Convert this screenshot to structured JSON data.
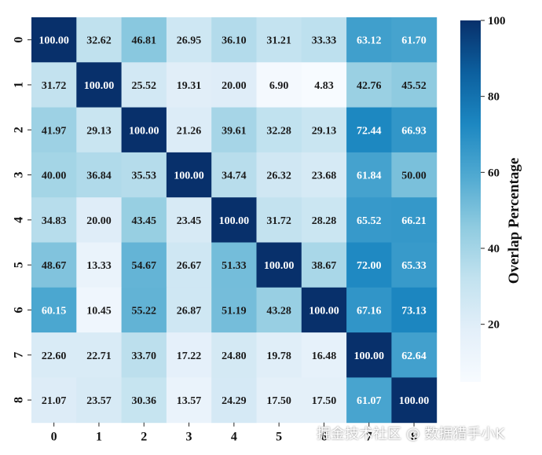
{
  "chart_data": {
    "type": "heatmap",
    "x_categories": [
      "0",
      "1",
      "2",
      "3",
      "4",
      "5",
      "6",
      "7",
      "8"
    ],
    "y_categories": [
      "0",
      "1",
      "2",
      "3",
      "4",
      "5",
      "6",
      "7",
      "8"
    ],
    "values": [
      [
        100.0,
        32.62,
        46.81,
        26.95,
        36.1,
        31.21,
        33.33,
        63.12,
        61.7
      ],
      [
        31.72,
        100.0,
        25.52,
        19.31,
        20.0,
        6.9,
        4.83,
        42.76,
        45.52
      ],
      [
        41.97,
        29.13,
        100.0,
        21.26,
        39.61,
        32.28,
        29.13,
        72.44,
        66.93
      ],
      [
        40.0,
        36.84,
        35.53,
        100.0,
        34.74,
        26.32,
        23.68,
        61.84,
        50.0
      ],
      [
        34.83,
        20.0,
        43.45,
        23.45,
        100.0,
        31.72,
        28.28,
        65.52,
        66.21
      ],
      [
        48.67,
        13.33,
        54.67,
        26.67,
        51.33,
        100.0,
        38.67,
        72.0,
        65.33
      ],
      [
        60.15,
        10.45,
        55.22,
        26.87,
        51.19,
        43.28,
        100.0,
        67.16,
        73.13
      ],
      [
        22.6,
        22.71,
        33.7,
        17.22,
        24.8,
        19.78,
        16.48,
        100.0,
        62.64
      ],
      [
        21.07,
        23.57,
        30.36,
        13.57,
        24.29,
        17.5,
        17.5,
        61.07,
        100.0
      ]
    ],
    "colorbar": {
      "label": "Overlap Percentage",
      "ticks": [
        20,
        40,
        60,
        80,
        100
      ],
      "range": [
        4.83,
        100
      ],
      "colormap": [
        "#f7fbff",
        "#e3eff9",
        "#c2e2ef",
        "#8fcbe0",
        "#4fa9d1",
        "#1c87c1",
        "#0c5f9e",
        "#08306b"
      ]
    },
    "grid": false,
    "legend": "right"
  },
  "watermark": "掘金技术社区 @ 数据猎手小K"
}
